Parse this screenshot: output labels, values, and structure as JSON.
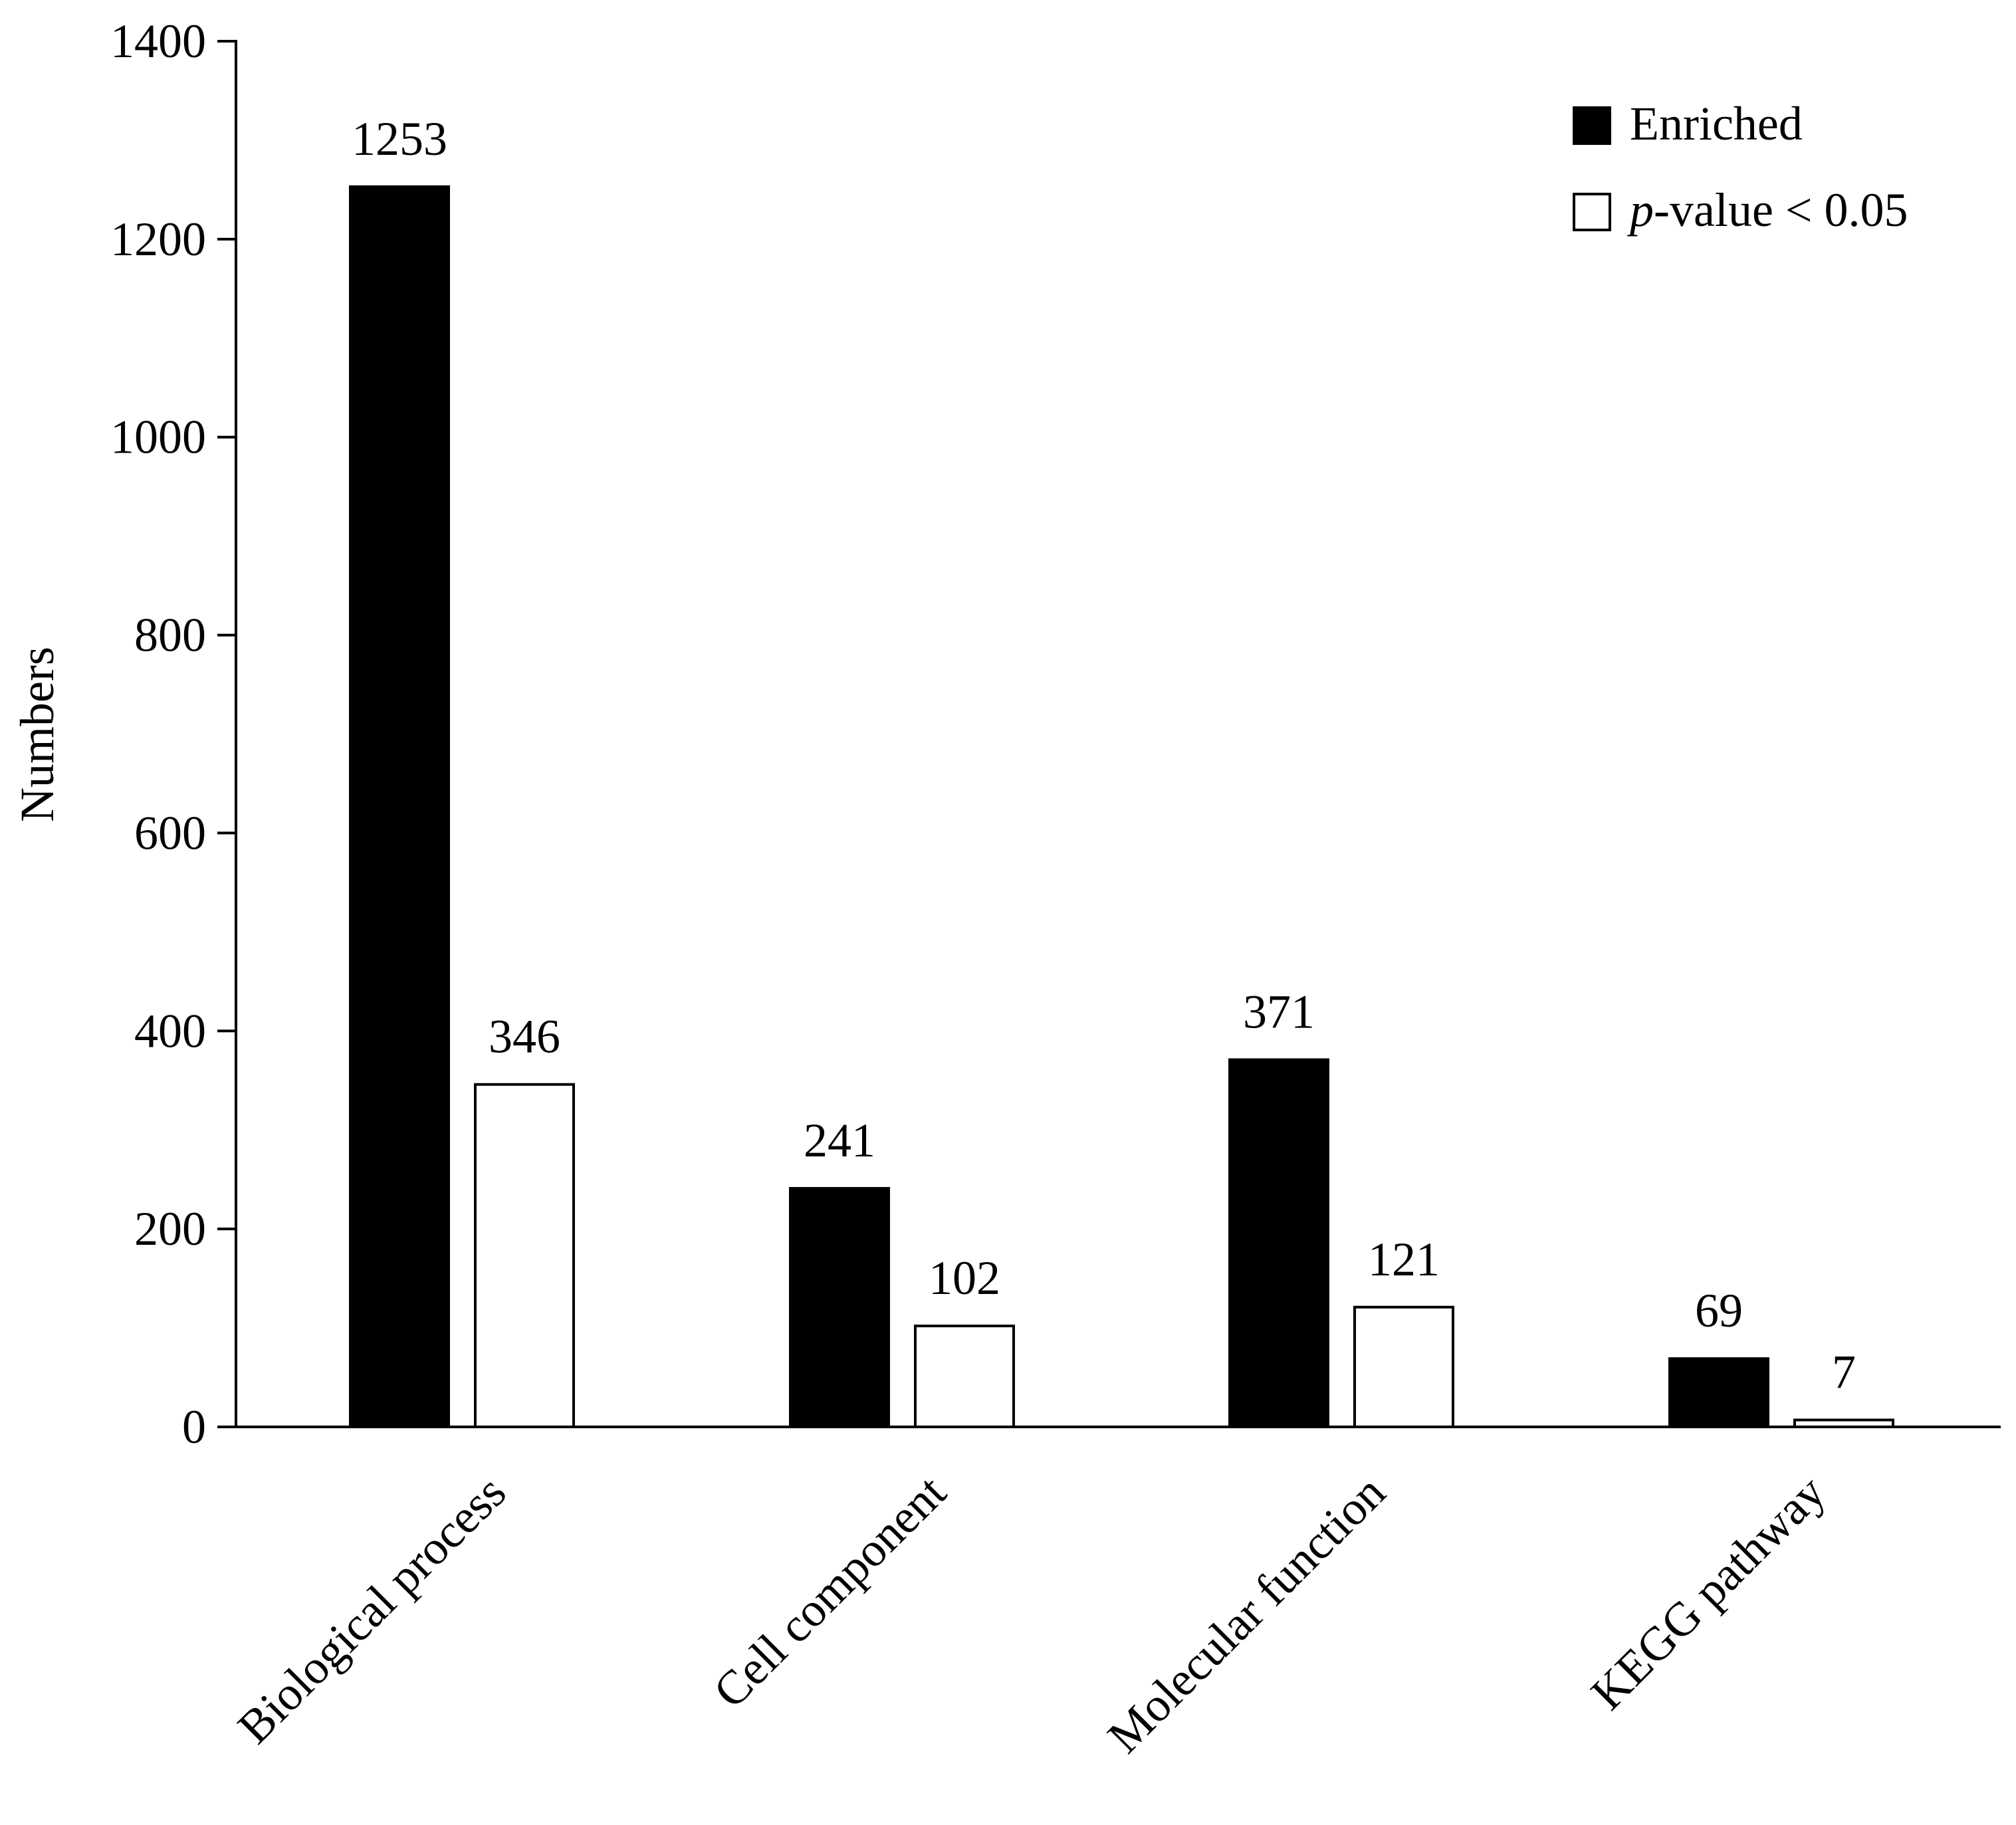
{
  "chart_data": {
    "type": "bar",
    "title": "",
    "xlabel": "",
    "ylabel": "Numbers",
    "ylim": [
      0,
      1400
    ],
    "yticks": [
      0,
      200,
      400,
      600,
      800,
      1000,
      1200,
      1400
    ],
    "grid": false,
    "legend_position": "top-right",
    "categories": [
      "Biological process",
      "Cell component",
      "Molecular function",
      "KEGG pathway"
    ],
    "series": [
      {
        "name": "Enriched",
        "fill": "#000000",
        "values": [
          1253,
          241,
          371,
          69
        ]
      },
      {
        "name": "-value < 0.05",
        "name_prefix_italic": "p",
        "fill": "#ffffff",
        "values": [
          346,
          102,
          121,
          7
        ]
      }
    ]
  }
}
